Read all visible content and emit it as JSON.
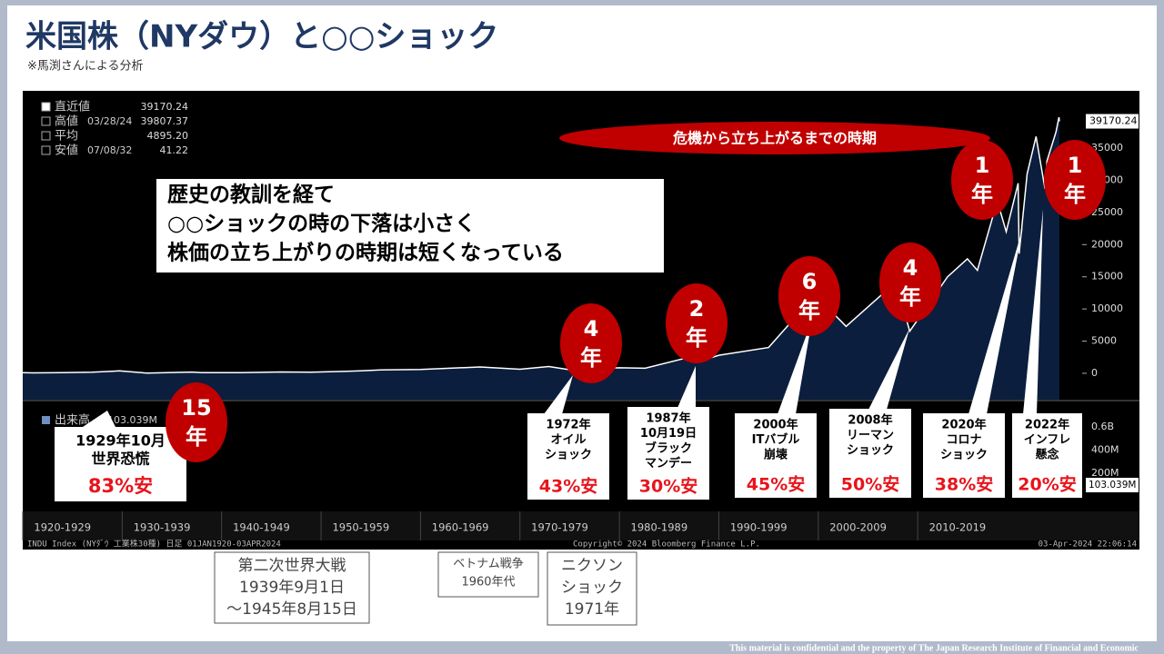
{
  "header": {
    "title": "米国株（NYダウ）と○○ショック",
    "note": "※馬渕さんによる分析"
  },
  "chart_data": {
    "type": "line",
    "x": [
      1920,
      1921,
      1924,
      1927,
      1929.7,
      1932.5,
      1937,
      1938,
      1942,
      1946,
      1949,
      1954,
      1956,
      1960,
      1966,
      1970,
      1972.9,
      1974.9,
      1980,
      1982.6,
      1987.6,
      1987.8,
      1990,
      1995,
      1999,
      2000,
      2002.8,
      2007.8,
      2009.2,
      2013,
      2015,
      2016,
      2018,
      2018.9,
      2020.1,
      2020.2,
      2021,
      2021.9,
      2022.8,
      2023,
      2023.9,
      2024.2,
      2024.25
    ],
    "series": [
      {
        "color": "#ffffff",
        "fill": "#0b1e3d",
        "values": [
          100,
          70,
          100,
          180,
          381,
          41,
          190,
          100,
          93,
          210,
          165,
          380,
          520,
          600,
          990,
          630,
          1050,
          580,
          850,
          780,
          2720,
          1740,
          2800,
          4000,
          11000,
          11700,
          7300,
          14165,
          6547,
          15000,
          17800,
          16000,
          26800,
          22000,
          29550,
          18590,
          31000,
          36800,
          28700,
          33000,
          37500,
          39807,
          39170.24
        ]
      }
    ],
    "xlim": [
      1920,
      2024.25
    ],
    "xticks": [
      {
        "value": 1920,
        "label": "1920-1929"
      },
      {
        "value": 1930,
        "label": "1930-1939"
      },
      {
        "value": 1940,
        "label": "1940-1949"
      },
      {
        "value": 1950,
        "label": "1950-1959"
      },
      {
        "value": 1960,
        "label": "1960-1969"
      },
      {
        "value": 1970,
        "label": "1970-1979"
      },
      {
        "value": 1980,
        "label": "1980-1989"
      },
      {
        "value": 1990,
        "label": "1990-1999"
      },
      {
        "value": 2000,
        "label": "2000-2009"
      },
      {
        "value": 2010,
        "label": "2010-2019"
      }
    ],
    "ylim": [
      -4100,
      43200
    ],
    "yticks": [
      0,
      5000,
      10000,
      15000,
      20000,
      25000,
      30000,
      35000
    ],
    "stats": [
      {
        "label": "直近値",
        "value": "39170.24"
      },
      {
        "label": "高値",
        "date": "03/28/24",
        "value": "39807.37"
      },
      {
        "label": "平均",
        "value": "4895.20"
      },
      {
        "label": "安値",
        "date": "07/08/32",
        "value": "41.22"
      }
    ],
    "volume": {
      "label": "出来高",
      "last": "103.039M",
      "ticks": [
        "0.6B",
        "400M",
        "200M"
      ]
    },
    "source": "INDU Index (NYﾀﾞｳ 工業株30種)  日足  01JAN1920-03APR2024",
    "copyright": "Copyright© 2024 Bloomberg Finance L.P.",
    "timestamp": "03-Apr-2024 22:06:14"
  },
  "banner": "危機から立ち上がるまでの時期",
  "lesson": [
    "歴史の教訓を経て",
    "○○ショックの時の下落は小さく",
    "株価の立ち上がりの時期は短くなっている"
  ],
  "recovery": [
    [
      "15",
      "年"
    ],
    [
      "4",
      "年"
    ],
    [
      "2",
      "年"
    ],
    [
      "6",
      "年"
    ],
    [
      "4",
      "年"
    ],
    [
      "1",
      "年"
    ],
    [
      "1",
      "年"
    ]
  ],
  "crises": [
    {
      "lines": [
        "1929年10月",
        "世界恐慌"
      ],
      "drop": "83%安"
    },
    {
      "lines": [
        "1972年",
        "オイル",
        "ショック"
      ],
      "drop": "43%安"
    },
    {
      "lines": [
        "1987年",
        "10月19日",
        "ブラック",
        "マンデー"
      ],
      "drop": "30%安"
    },
    {
      "lines": [
        "2000年",
        "ITバブル",
        "崩壊"
      ],
      "drop": "45%安"
    },
    {
      "lines": [
        "2008年",
        "リーマン",
        "ショック"
      ],
      "drop": "50%安"
    },
    {
      "lines": [
        "2020年",
        "コロナ",
        "ショック"
      ],
      "drop": "38%安"
    },
    {
      "lines": [
        "2022年",
        "インフレ",
        "懸念"
      ],
      "drop": "20%安"
    }
  ],
  "events": [
    [
      "第二次世界大戦",
      "1939年9月1日",
      "～1945年8月15日"
    ],
    [
      "ベトナム戦争",
      "1960年代"
    ],
    [
      "ニクソン",
      "ショック",
      "1971年"
    ]
  ],
  "footer": "This material is confidential and the property of The Japan Research Institute of Financial and Economic"
}
